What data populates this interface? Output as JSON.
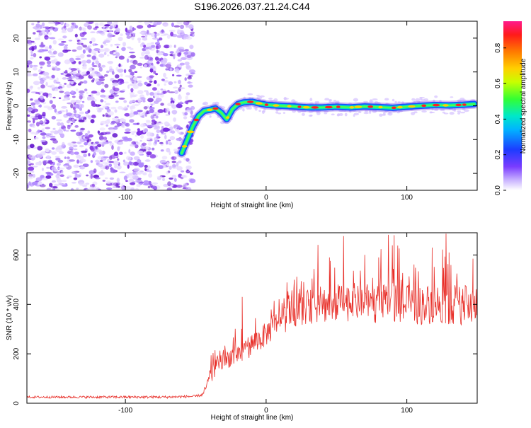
{
  "title": "S196.2026.037.21.24.C44",
  "colors": {
    "axis": "#000000",
    "snr_line": "#e8302a",
    "ridge_low": "#1a50ff",
    "ridge_mid": "#00e0c0",
    "ridge_high": "#ff2020",
    "noise": "#8a2be2"
  },
  "chart_data": [
    {
      "type": "heatmap",
      "title": "S196.2026.037.21.24.C44",
      "xlabel": "Height of straight line (km)",
      "ylabel": "Frequency (Hz)",
      "xlim": [
        -170,
        150
      ],
      "ylim": [
        -25,
        25
      ],
      "x_ticks": [
        -100,
        0,
        100
      ],
      "x_tick_labels": [
        "-100",
        "0",
        "100"
      ],
      "y_ticks": [
        -20,
        -10,
        0,
        10,
        20
      ],
      "y_tick_labels": [
        "-20",
        "-10",
        "0",
        "10",
        "20"
      ],
      "colorbar": {
        "label": "Normalized spectral amplitude",
        "range": [
          0,
          0.95
        ],
        "ticks": [
          0.0,
          0.2,
          0.4,
          0.6,
          0.8
        ],
        "tick_labels": [
          "0.0",
          "0.2",
          "0.4",
          "0.6",
          "0.8"
        ]
      },
      "noise_region": {
        "x": [
          -170,
          -52
        ],
        "y": [
          -25,
          25
        ]
      },
      "ridge": {
        "x": [
          -60,
          -56,
          -52,
          -48,
          -44,
          -40,
          -36,
          -32,
          -28,
          -24,
          -20,
          -16,
          -10,
          -4,
          0,
          10,
          20,
          30,
          40,
          50,
          60,
          70,
          80,
          90,
          100,
          110,
          120,
          130,
          140,
          148
        ],
        "y": [
          -14,
          -10,
          -6,
          -3,
          -1.5,
          -1.2,
          -0.8,
          -2,
          -4,
          -1,
          0.5,
          1.0,
          1.2,
          0.6,
          0.3,
          0,
          -0.2,
          -0.5,
          -0.5,
          -0.3,
          -0.5,
          -0.2,
          -0.4,
          -0.6,
          -0.3,
          0,
          0.2,
          0.1,
          0.3,
          0.5
        ]
      }
    },
    {
      "type": "line",
      "xlabel": "Height of straight line (km)",
      "ylabel": "SNR (10 * v/v)",
      "xlim": [
        -170,
        150
      ],
      "ylim": [
        0,
        690
      ],
      "x_ticks": [
        -100,
        0,
        100
      ],
      "x_tick_labels": [
        "-100",
        "0",
        "100"
      ],
      "y_ticks": [
        0,
        200,
        400,
        600
      ],
      "y_tick_labels": [
        "0",
        "200",
        "400",
        "600"
      ],
      "series": [
        {
          "name": "SNR",
          "x": [
            -170,
            -150,
            -130,
            -110,
            -90,
            -70,
            -50,
            -45,
            -40,
            -35,
            -30,
            -25,
            -20,
            -16,
            -12,
            -8,
            -4,
            0,
            5,
            10,
            15,
            20,
            25,
            30,
            40,
            50,
            60,
            70,
            80,
            90,
            100,
            110,
            120,
            130,
            140,
            150
          ],
          "y": [
            25,
            25,
            25,
            25,
            25,
            25,
            28,
            35,
            100,
            150,
            170,
            190,
            200,
            210,
            230,
            250,
            260,
            280,
            310,
            330,
            350,
            370,
            380,
            390,
            400,
            405,
            410,
            405,
            400,
            410,
            400,
            395,
            405,
            400,
            395,
            400
          ],
          "noise_amplitude": {
            "x": [
              -170,
              -45,
              -40,
              -20,
              0,
              20,
              40,
              150
            ],
            "amp": [
              8,
              10,
              60,
              80,
              90,
              110,
              140,
              150
            ]
          },
          "spikes": [
            {
              "x": -17,
              "y": 430
            },
            {
              "x": 20,
              "y": 500
            },
            {
              "x": 45,
              "y": 590
            },
            {
              "x": 80,
              "y": 590
            },
            {
              "x": 91,
              "y": 680
            },
            {
              "x": 118,
              "y": 630
            },
            {
              "x": 130,
              "y": 610
            },
            {
              "x": 147,
              "y": 585
            }
          ]
        }
      ]
    }
  ]
}
